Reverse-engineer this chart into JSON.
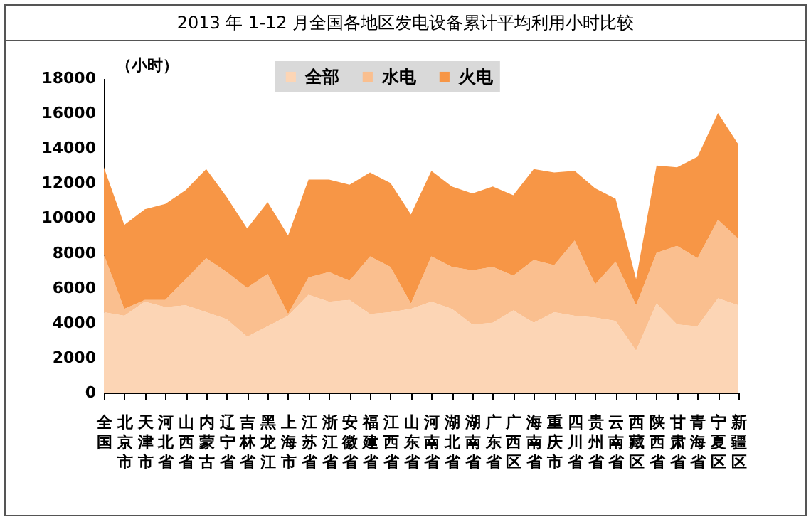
{
  "chart_data": {
    "type": "area",
    "stacked": true,
    "title": "2013 年 1-12 月全国各地区发电设备累计平均利用小时比较",
    "ylabel": "（小时）",
    "categories": [
      "全国",
      "北京市",
      "天津市",
      "河北省",
      "山西省",
      "内蒙古",
      "辽宁省",
      "吉林省",
      "黑龙江",
      "上海市",
      "江苏省",
      "浙江省",
      "安徽省",
      "福建省",
      "江西省",
      "山东省",
      "河南省",
      "湖北省",
      "湖南省",
      "广东省",
      "广西区",
      "海南省",
      "重庆市",
      "四川省",
      "贵州省",
      "云南省",
      "西藏区",
      "陕西省",
      "甘肃省",
      "青海省",
      "宁夏区",
      "新疆区"
    ],
    "series": [
      {
        "name": "全部",
        "color": "#fcd5b5",
        "values": [
          4600,
          4400,
          5200,
          4900,
          5000,
          4600,
          4200,
          3200,
          3800,
          4400,
          5600,
          5200,
          5300,
          4500,
          4600,
          4800,
          5200,
          4800,
          3900,
          4000,
          4700,
          4000,
          4600,
          4400,
          4300,
          4100,
          2400,
          5100,
          3900,
          3800,
          5400,
          5000
        ]
      },
      {
        "name": "水电",
        "color": "#fabf8f",
        "values": [
          3300,
          400,
          100,
          400,
          1500,
          3100,
          2700,
          2800,
          3000,
          100,
          1000,
          1700,
          1100,
          3300,
          2600,
          300,
          2600,
          2400,
          3100,
          3200,
          2000,
          3600,
          2700,
          4300,
          1900,
          3400,
          2600,
          2900,
          4500,
          3900,
          4500,
          3800
        ]
      },
      {
        "name": "火电",
        "color": "#f79646",
        "values": [
          5000,
          4800,
          5200,
          5500,
          5100,
          5100,
          4300,
          3400,
          4100,
          4500,
          5600,
          5300,
          5500,
          4800,
          4800,
          5100,
          4900,
          4600,
          4400,
          4600,
          4600,
          5200,
          5300,
          4000,
          5500,
          3600,
          1500,
          5000,
          4500,
          5800,
          6100,
          5400
        ]
      }
    ],
    "ylim": [
      0,
      18000
    ],
    "yticks": [
      0,
      2000,
      4000,
      6000,
      8000,
      10000,
      12000,
      14000,
      16000,
      18000
    ],
    "grid": false,
    "legend": "top"
  }
}
